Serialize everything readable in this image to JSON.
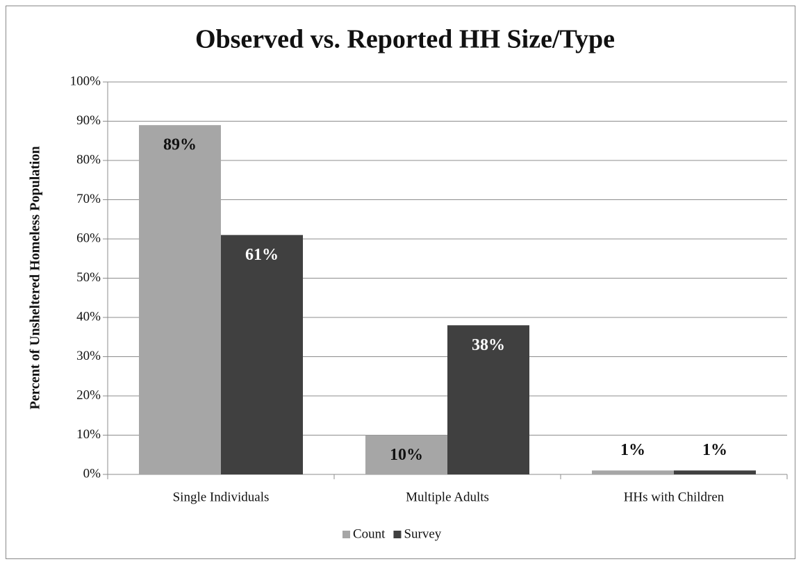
{
  "chart_data": {
    "type": "bar",
    "title": "Observed vs. Reported HH Size/Type",
    "y_label": "Percent of Unsheltered Homeless Population",
    "categories": [
      "Single Individuals",
      "Multiple Adults",
      "HHs with Children"
    ],
    "series": [
      {
        "name": "Count",
        "color": "#a6a6a6",
        "values": [
          89,
          10,
          1
        ],
        "value_labels": [
          "89%",
          "10%",
          "1%"
        ]
      },
      {
        "name": "Survey",
        "color": "#404040",
        "values": [
          61,
          38,
          1
        ],
        "value_labels": [
          "61%",
          "38%",
          "1%"
        ]
      }
    ],
    "ylim": [
      0,
      100
    ],
    "yticks": [
      {
        "value": 0,
        "label": "0%"
      },
      {
        "value": 10,
        "label": "10%"
      },
      {
        "value": 20,
        "label": "20%"
      },
      {
        "value": 30,
        "label": "30%"
      },
      {
        "value": 40,
        "label": "40%"
      },
      {
        "value": 50,
        "label": "50%"
      },
      {
        "value": 60,
        "label": "60%"
      },
      {
        "value": 70,
        "label": "70%"
      },
      {
        "value": 80,
        "label": "80%"
      },
      {
        "value": 90,
        "label": "90%"
      },
      {
        "value": 100,
        "label": "100%"
      }
    ],
    "grid": true,
    "legend": "bottom"
  }
}
